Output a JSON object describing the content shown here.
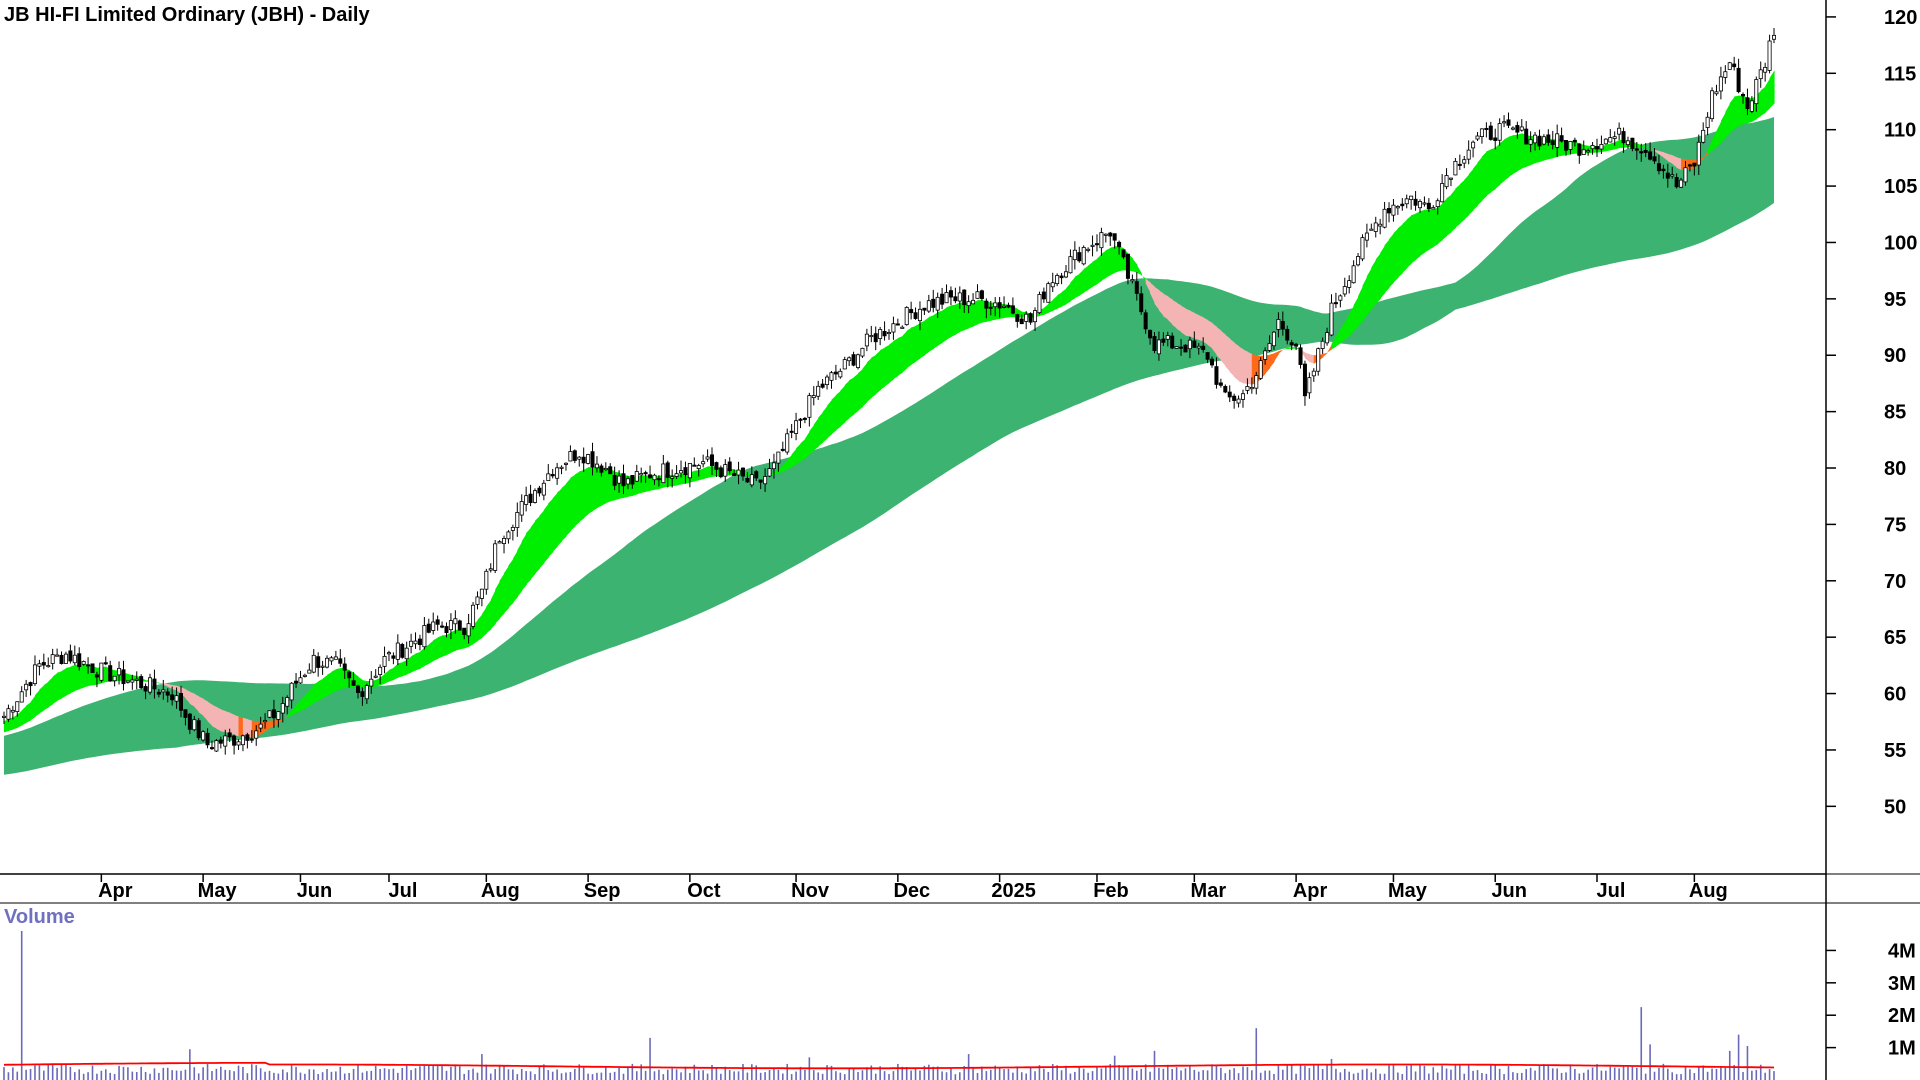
{
  "chart_data": {
    "type": "candlestick",
    "title": "JB HI-FI Limited Ordinary (JBH) - Daily",
    "volume_label": "Volume",
    "price_axis": {
      "ylim": [
        44,
        121.5
      ],
      "ticks": [
        50,
        55,
        60,
        65,
        70,
        75,
        80,
        85,
        90,
        95,
        100,
        105,
        110,
        115,
        120
      ]
    },
    "volume_axis": {
      "ylim": [
        0,
        4.6
      ],
      "ticks": [
        {
          "value": 1,
          "label": "1M"
        },
        {
          "value": 2,
          "label": "2M"
        },
        {
          "value": 3,
          "label": "3M"
        },
        {
          "value": 4,
          "label": "4M"
        }
      ]
    },
    "x_labels": [
      {
        "label": "Apr",
        "t": 22
      },
      {
        "label": "May",
        "t": 45
      },
      {
        "label": "Jun",
        "t": 67
      },
      {
        "label": "Jul",
        "t": 87
      },
      {
        "label": "Aug",
        "t": 109
      },
      {
        "label": "Sep",
        "t": 132
      },
      {
        "label": "Oct",
        "t": 155
      },
      {
        "label": "Nov",
        "t": 179
      },
      {
        "label": "Dec",
        "t": 202
      },
      {
        "label": "2025",
        "t": 225
      },
      {
        "label": "Feb",
        "t": 247
      },
      {
        "label": "Mar",
        "t": 269
      },
      {
        "label": "Apr",
        "t": 292
      },
      {
        "label": "May",
        "t": 314
      },
      {
        "label": "Jun",
        "t": 337
      },
      {
        "label": "Jul",
        "t": 360
      },
      {
        "label": "Aug",
        "t": 382
      }
    ],
    "price_keypoints": [
      [
        0,
        58
      ],
      [
        8,
        62.5
      ],
      [
        14,
        63.5
      ],
      [
        22,
        62
      ],
      [
        30,
        61
      ],
      [
        38,
        60
      ],
      [
        42,
        57.5
      ],
      [
        46,
        55.5
      ],
      [
        52,
        56
      ],
      [
        58,
        57
      ],
      [
        62,
        58.5
      ],
      [
        66,
        61
      ],
      [
        70,
        63
      ],
      [
        75,
        62.5
      ],
      [
        80,
        60
      ],
      [
        86,
        63
      ],
      [
        92,
        64.5
      ],
      [
        98,
        66
      ],
      [
        104,
        66
      ],
      [
        108,
        69
      ],
      [
        112,
        74
      ],
      [
        118,
        77
      ],
      [
        124,
        80
      ],
      [
        130,
        81.5
      ],
      [
        136,
        80
      ],
      [
        140,
        78.5
      ],
      [
        146,
        79.5
      ],
      [
        152,
        80
      ],
      [
        158,
        80.5
      ],
      [
        164,
        79.5
      ],
      [
        170,
        78.5
      ],
      [
        174,
        80
      ],
      [
        178,
        83
      ],
      [
        184,
        87
      ],
      [
        190,
        89
      ],
      [
        196,
        91.5
      ],
      [
        202,
        93
      ],
      [
        208,
        94.5
      ],
      [
        214,
        95
      ],
      [
        220,
        95
      ],
      [
        226,
        94.5
      ],
      [
        232,
        93
      ],
      [
        236,
        96.5
      ],
      [
        240,
        98
      ],
      [
        244,
        99.5
      ],
      [
        250,
        101
      ],
      [
        256,
        95
      ],
      [
        260,
        91
      ],
      [
        266,
        91
      ],
      [
        272,
        90
      ],
      [
        276,
        86
      ],
      [
        280,
        86.5
      ],
      [
        284,
        89
      ],
      [
        288,
        93
      ],
      [
        292,
        91
      ],
      [
        294,
        86
      ],
      [
        300,
        94
      ],
      [
        306,
        99
      ],
      [
        312,
        103
      ],
      [
        318,
        104
      ],
      [
        322,
        103
      ],
      [
        326,
        106
      ],
      [
        332,
        109
      ],
      [
        338,
        110
      ],
      [
        344,
        109.5
      ],
      [
        350,
        109
      ],
      [
        356,
        108.5
      ],
      [
        360,
        109
      ],
      [
        366,
        109.5
      ],
      [
        372,
        108
      ],
      [
        378,
        105
      ],
      [
        382,
        107
      ],
      [
        386,
        113
      ],
      [
        390,
        116
      ],
      [
        394,
        112
      ],
      [
        398,
        116
      ],
      [
        400,
        119
      ]
    ],
    "volume_ma_m": 0.42,
    "volume_spikes": [
      {
        "t": 4,
        "v": 4.6
      },
      {
        "t": 42,
        "v": 0.95
      },
      {
        "t": 108,
        "v": 0.8
      },
      {
        "t": 146,
        "v": 1.3
      },
      {
        "t": 182,
        "v": 0.7
      },
      {
        "t": 218,
        "v": 0.8
      },
      {
        "t": 251,
        "v": 0.75
      },
      {
        "t": 260,
        "v": 0.9
      },
      {
        "t": 283,
        "v": 1.6
      },
      {
        "t": 300,
        "v": 0.65
      },
      {
        "t": 370,
        "v": 2.25
      },
      {
        "t": 372,
        "v": 1.1
      },
      {
        "t": 390,
        "v": 0.9
      },
      {
        "t": 392,
        "v": 1.4
      },
      {
        "t": 394,
        "v": 1.05
      }
    ],
    "colors": {
      "up_candle": "#000000",
      "band_bull": "#00ee00",
      "band_weak": "#ff6a1a",
      "band_bear": "#f4b4b4",
      "long_band": "#3cb371",
      "volume_bar": "#6a6ab8",
      "volume_ma": "#ff0000",
      "axis": "#000000"
    }
  }
}
